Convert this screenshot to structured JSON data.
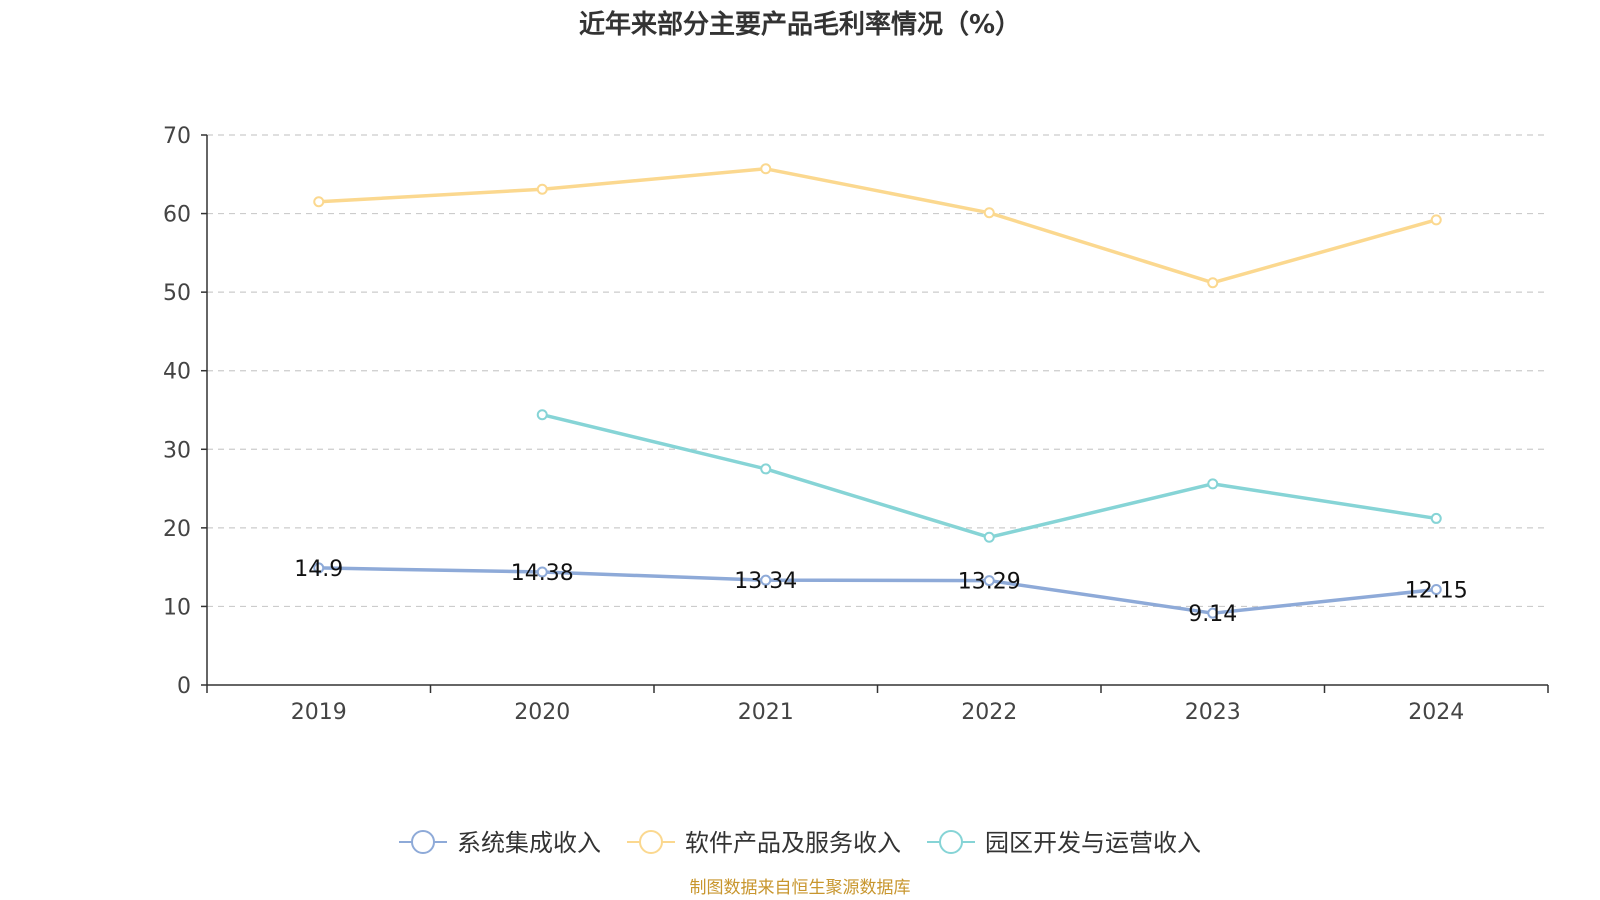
{
  "title": "近年来部分主要产品毛利率情况（%）",
  "source_note": "制图数据来自恒生聚源数据库",
  "colors": {
    "系统集成收入": "#8eaad8",
    "软件产品及服务收入": "#fbd88f",
    "园区开发与运营收入": "#86d4d6",
    "axis": "#333333",
    "grid": "#cccccc",
    "source": "#c8962e"
  },
  "chart_data": {
    "type": "line",
    "title": "近年来部分主要产品毛利率情况（%）",
    "xlabel": "",
    "ylabel": "",
    "categories": [
      "2019",
      "2020",
      "2021",
      "2022",
      "2023",
      "2024"
    ],
    "ylim": [
      0,
      70
    ],
    "yticks": [
      0,
      10,
      20,
      30,
      40,
      50,
      60,
      70
    ],
    "grid": true,
    "legend_position": "bottom",
    "series": [
      {
        "name": "系统集成收入",
        "values": [
          14.9,
          14.38,
          13.34,
          13.29,
          9.14,
          12.15
        ],
        "labels": [
          "14.9",
          "14.38",
          "13.34",
          "13.29",
          "9.14",
          "12.15"
        ]
      },
      {
        "name": "软件产品及服务收入",
        "values": [
          61.5,
          63.1,
          65.7,
          60.1,
          51.2,
          59.2
        ],
        "labels": []
      },
      {
        "name": "园区开发与运营收入",
        "values": [
          null,
          34.4,
          27.5,
          18.8,
          25.6,
          21.2
        ],
        "labels": []
      }
    ]
  }
}
